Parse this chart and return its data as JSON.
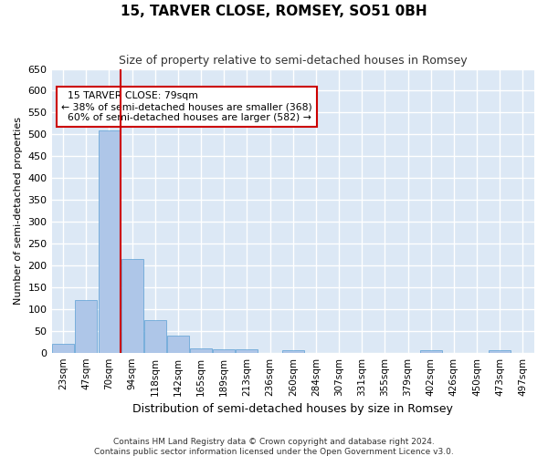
{
  "title": "15, TARVER CLOSE, ROMSEY, SO51 0BH",
  "subtitle": "Size of property relative to semi-detached houses in Romsey",
  "xlabel": "Distribution of semi-detached houses by size in Romsey",
  "ylabel": "Number of semi-detached properties",
  "categories": [
    "23sqm",
    "47sqm",
    "70sqm",
    "94sqm",
    "118sqm",
    "142sqm",
    "165sqm",
    "189sqm",
    "213sqm",
    "236sqm",
    "260sqm",
    "284sqm",
    "307sqm",
    "331sqm",
    "355sqm",
    "379sqm",
    "402sqm",
    "426sqm",
    "450sqm",
    "473sqm",
    "497sqm"
  ],
  "values": [
    20,
    120,
    510,
    215,
    75,
    40,
    10,
    8,
    8,
    0,
    5,
    0,
    0,
    0,
    0,
    0,
    5,
    0,
    0,
    5,
    0
  ],
  "bar_color": "#aec6e8",
  "bar_edge_color": "#5a9fd4",
  "background_color": "#dce8f5",
  "grid_color": "#ffffff",
  "property_label": "15 TARVER CLOSE: 79sqm",
  "smaller_pct": "38% of semi-detached houses are smaller (368)",
  "larger_pct": "60% of semi-detached houses are larger (582)",
  "annotation_box_color": "#ffffff",
  "annotation_box_edge_color": "#cc0000",
  "vline_color": "#cc0000",
  "vline_x": 2.5,
  "ylim": [
    0,
    650
  ],
  "yticks": [
    0,
    50,
    100,
    150,
    200,
    250,
    300,
    350,
    400,
    450,
    500,
    550,
    600,
    650
  ],
  "footer1": "Contains HM Land Registry data © Crown copyright and database right 2024.",
  "footer2": "Contains public sector information licensed under the Open Government Licence v3.0."
}
